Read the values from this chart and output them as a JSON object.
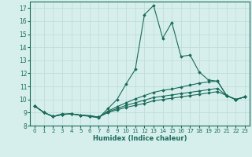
{
  "xlabel": "Humidex (Indice chaleur)",
  "xlim": [
    -0.5,
    23.5
  ],
  "ylim": [
    8,
    17.5
  ],
  "yticks": [
    8,
    9,
    10,
    11,
    12,
    13,
    14,
    15,
    16,
    17
  ],
  "xticks": [
    0,
    1,
    2,
    3,
    4,
    5,
    6,
    7,
    8,
    9,
    10,
    11,
    12,
    13,
    14,
    15,
    16,
    17,
    18,
    19,
    20,
    21,
    22,
    23
  ],
  "bg_color": "#d6efed",
  "grid_color": "#c0deda",
  "line_color": "#1a6b5a",
  "lines": [
    [
      9.5,
      9.0,
      8.7,
      8.9,
      8.9,
      8.8,
      8.7,
      8.6,
      9.3,
      10.0,
      11.2,
      12.3,
      16.5,
      17.2,
      14.7,
      15.9,
      13.3,
      13.4,
      12.1,
      11.5,
      11.4,
      10.3,
      10.0,
      10.2
    ],
    [
      9.5,
      9.0,
      8.7,
      8.85,
      8.9,
      8.8,
      8.75,
      8.65,
      9.1,
      9.45,
      9.75,
      10.05,
      10.3,
      10.55,
      10.7,
      10.8,
      10.95,
      11.1,
      11.25,
      11.35,
      11.4,
      10.3,
      10.0,
      10.2
    ],
    [
      9.5,
      9.0,
      8.7,
      8.85,
      8.9,
      8.8,
      8.75,
      8.65,
      9.05,
      9.3,
      9.55,
      9.75,
      9.95,
      10.15,
      10.25,
      10.35,
      10.45,
      10.55,
      10.65,
      10.75,
      10.85,
      10.3,
      10.0,
      10.2
    ],
    [
      9.5,
      9.0,
      8.7,
      8.85,
      8.9,
      8.8,
      8.75,
      8.65,
      9.0,
      9.2,
      9.4,
      9.55,
      9.7,
      9.9,
      10.0,
      10.1,
      10.2,
      10.3,
      10.4,
      10.5,
      10.6,
      10.3,
      10.0,
      10.2
    ]
  ]
}
